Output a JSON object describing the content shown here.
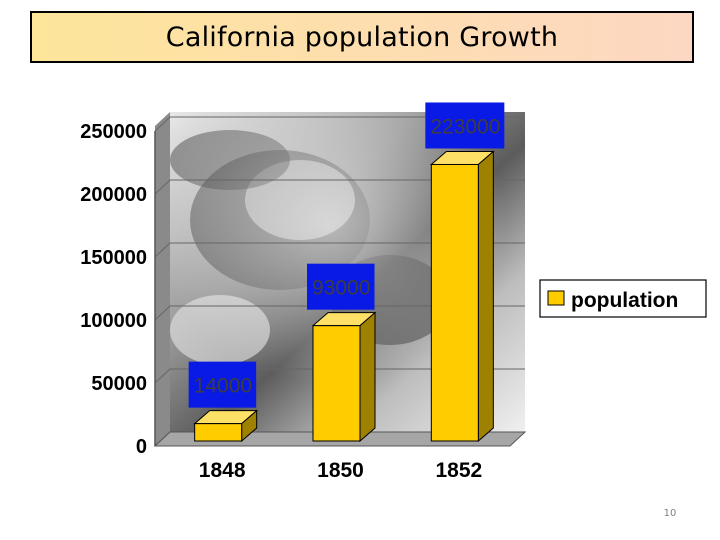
{
  "title": "California population Growth",
  "page_number": "10",
  "colors": {
    "bar_front": "#ffcc00",
    "bar_side": "#9f8100",
    "bar_top": "#ffe066",
    "data_label_bg": "#0a1ae6",
    "gridline": "#666666",
    "title_gradient_start": "#fde59a",
    "title_gradient_end": "#fdd7c3"
  },
  "chart_data": {
    "type": "bar",
    "categories": [
      "1848",
      "1850",
      "1852"
    ],
    "series": [
      {
        "name": "population",
        "values": [
          14000,
          93000,
          223000
        ]
      }
    ],
    "data_labels": [
      "14000",
      "93000",
      "223000"
    ],
    "y_ticks": [
      0,
      50000,
      100000,
      150000,
      200000,
      250000
    ],
    "y_tick_labels": [
      "0",
      "50000",
      "100000",
      "150000",
      "200000",
      "250000"
    ],
    "ylim": [
      0,
      250000
    ],
    "grid": true,
    "three_d": true,
    "legend": {
      "position": "right",
      "label": "population"
    },
    "background": "gold-rush-photo"
  }
}
